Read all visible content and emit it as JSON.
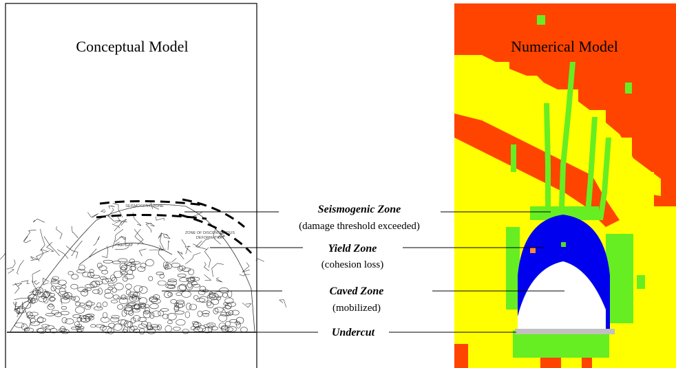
{
  "titles": {
    "conceptual": "Conceptual Model",
    "numerical": "Numerical Model"
  },
  "zones": [
    {
      "name": "Seismogenic Zone",
      "note": "(damage threshold exceeded)"
    },
    {
      "name": "Yield Zone",
      "note": "(cohesion loss)"
    },
    {
      "name": "Caved Zone",
      "note": "(mobilized)"
    },
    {
      "name": "Undercut"
    }
  ],
  "sketch_labels": {
    "seismogenic": "SEISMOGENIC ZONE",
    "discontinuous_1": "ZONE OF DISCONTINUOUS",
    "discontinuous_2": "DEFORMATION",
    "air_gap": "AIR GAP",
    "caved": "CAVED ZONE"
  }
}
